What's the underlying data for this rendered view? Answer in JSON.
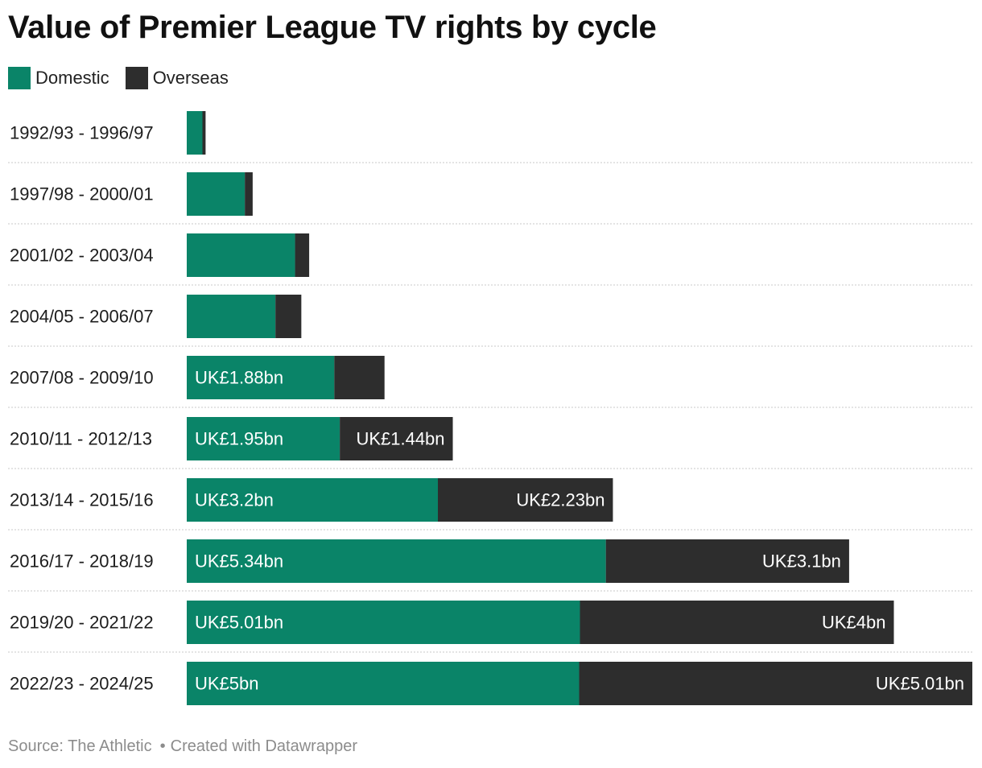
{
  "chart_data": {
    "type": "bar",
    "orientation": "horizontal",
    "stacked": true,
    "title": "Value of Premier League TV rights by cycle",
    "legend": [
      {
        "name": "Domestic",
        "color": "#0a8468"
      },
      {
        "name": "Overseas",
        "color": "#2d2d2d"
      }
    ],
    "categories": [
      "1992/93 - 1996/97",
      "1997/98 - 2000/01",
      "2001/02 - 2003/04",
      "2004/05 - 2006/07",
      "2007/08 - 2009/10",
      "2010/11 - 2012/13",
      "2013/14 - 2015/16",
      "2016/17 - 2018/19",
      "2019/20 - 2021/22",
      "2022/23 - 2024/25"
    ],
    "series": [
      {
        "name": "Domestic",
        "color": "#0a8468",
        "values": [
          0.2,
          0.74,
          1.38,
          1.13,
          1.88,
          1.95,
          3.2,
          5.34,
          5.01,
          5.0
        ],
        "labels": [
          "",
          "",
          "",
          "",
          "UK£1.88bn",
          "UK£1.95bn",
          "UK£3.2bn",
          "UK£5.34bn",
          "UK£5.01bn",
          "UK£5bn"
        ]
      },
      {
        "name": "Overseas",
        "color": "#2d2d2d",
        "values": [
          0.04,
          0.1,
          0.18,
          0.33,
          0.64,
          1.44,
          2.23,
          3.1,
          4.0,
          5.01
        ],
        "labels": [
          "",
          "",
          "",
          "",
          "",
          "UK£1.44bn",
          "UK£2.23bn",
          "UK£3.1bn",
          "UK£4bn",
          "UK£5.01bn"
        ]
      }
    ],
    "unit": "UK£ bn",
    "xlim": [
      0,
      10.01
    ],
    "grid": false
  },
  "footer": {
    "source": "Source: The Athletic",
    "separator": "•",
    "credit": "Created with Datawrapper"
  }
}
